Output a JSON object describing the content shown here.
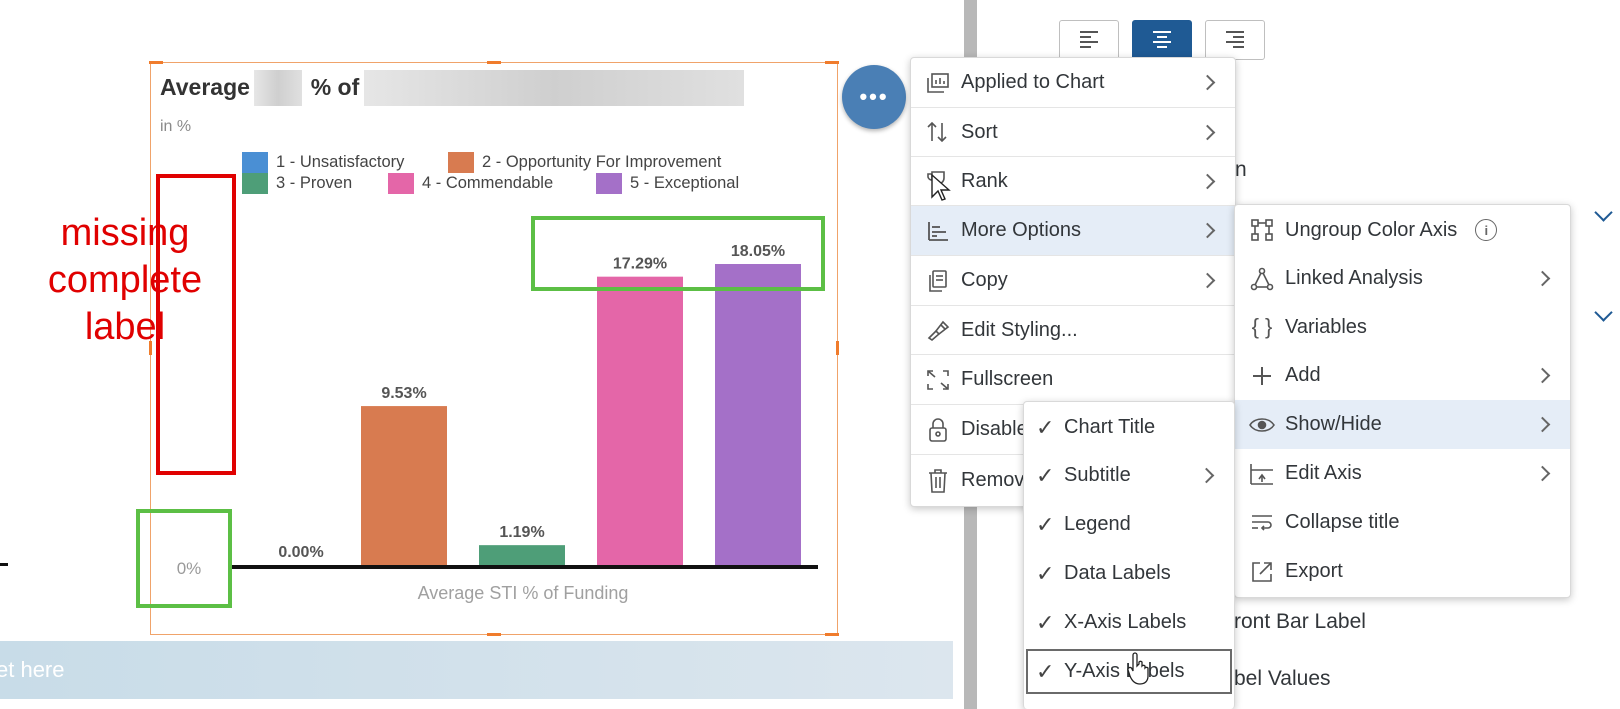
{
  "chart_widget": {
    "title_prefix": "Average",
    "title_mid": "% of",
    "subtitle": "in %"
  },
  "legend": [
    {
      "label": "1 - Unsatisfactory",
      "color": "#4a8fd4"
    },
    {
      "label": "2 - Opportunity For Improvement",
      "color": "#d87b50"
    },
    {
      "label": "3 - Proven",
      "color": "#4e9e78"
    },
    {
      "label": "4 - Commendable",
      "color": "#e466a8"
    },
    {
      "label": "5 - Exceptional",
      "color": "#a470c8"
    }
  ],
  "chart_data": {
    "type": "bar",
    "categories": [
      "1 - Unsatisfactory",
      "2 - Opportunity For Improvement",
      "3 - Proven",
      "4 - Commendable",
      "5 - Exceptional"
    ],
    "values": [
      0.0,
      9.53,
      1.19,
      17.29,
      18.05
    ],
    "data_labels": [
      "0.00%",
      "9.53%",
      "1.19%",
      "17.29%",
      "18.05%"
    ],
    "colors": [
      "#4a8fd4",
      "#d87b50",
      "#4e9e78",
      "#e466a8",
      "#a470c8"
    ],
    "ytick_label": "0%",
    "xlabel": "Average STI % of Funding",
    "ylim": [
      0,
      18.05
    ]
  },
  "annotation": {
    "text_lines": [
      "missing",
      "complete",
      "label"
    ],
    "red_color": "#e00000",
    "green_color": "#5cbf45"
  },
  "input_strip": {
    "placeholder": "et here"
  },
  "fab": {
    "label": "•••"
  },
  "right_panel": {
    "align_buttons": [
      "align-left",
      "align-center",
      "align-right"
    ],
    "partial_text_1": "n",
    "partial_text_2": "ront Bar Label",
    "partial_text_3": "bel Values"
  },
  "context_menu": {
    "items": [
      {
        "label": "Applied to Chart",
        "icon": "chart-icon",
        "submenu": true
      },
      {
        "label": "Sort",
        "icon": "sort-icon",
        "submenu": true
      },
      {
        "label": "Rank",
        "icon": "trophy-icon",
        "submenu": true
      },
      {
        "label": "More Options",
        "icon": "options-icon",
        "submenu": true
      },
      {
        "label": "Copy",
        "icon": "copy-icon",
        "submenu": true
      },
      {
        "label": "Edit Styling...",
        "icon": "paint-icon",
        "submenu": false
      },
      {
        "label": "Fullscreen",
        "icon": "fullscreen-icon",
        "submenu": false
      },
      {
        "label": "Disable",
        "icon": "lock-icon",
        "submenu": false
      },
      {
        "label": "Remov",
        "icon": "trash-icon",
        "submenu": false
      }
    ]
  },
  "more_options_menu": {
    "items": [
      {
        "label": "Ungroup Color Axis",
        "icon": "hierarchy-icon",
        "submenu": false
      },
      {
        "label": "Linked Analysis",
        "icon": "linked-icon",
        "submenu": true
      },
      {
        "label": "Variables",
        "icon": "braces-icon",
        "submenu": false
      },
      {
        "label": "Add",
        "icon": "plus-icon",
        "submenu": true
      },
      {
        "label": "Show/Hide",
        "icon": "eye-icon",
        "submenu": true
      },
      {
        "label": "Edit Axis",
        "icon": "axis-icon",
        "submenu": true
      },
      {
        "label": "Collapse title",
        "icon": "collapse-icon",
        "submenu": false
      },
      {
        "label": "Export",
        "icon": "export-icon",
        "submenu": false
      }
    ]
  },
  "show_hide_menu": {
    "items": [
      {
        "label": "Chart Title",
        "checked": true,
        "submenu": false
      },
      {
        "label": "Subtitle",
        "checked": true,
        "submenu": true
      },
      {
        "label": "Legend",
        "checked": true,
        "submenu": false
      },
      {
        "label": "Data Labels",
        "checked": true,
        "submenu": false
      },
      {
        "label": "X-Axis Labels",
        "checked": true,
        "submenu": false
      },
      {
        "label": "Y-Axis Labels",
        "checked": true,
        "submenu": false
      }
    ]
  }
}
